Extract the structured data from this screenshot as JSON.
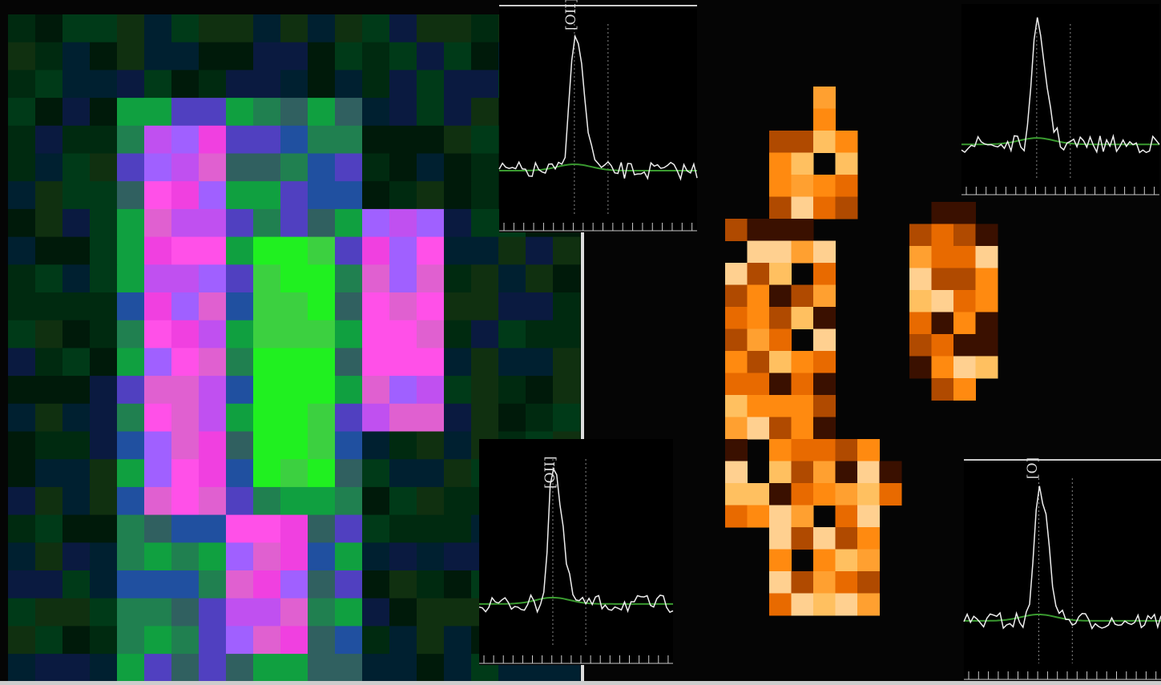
{
  "insets": [
    {
      "label": "[OII]"
    },
    {
      "label": "[OII]"
    },
    {
      "label": "[O]"
    }
  ]
}
